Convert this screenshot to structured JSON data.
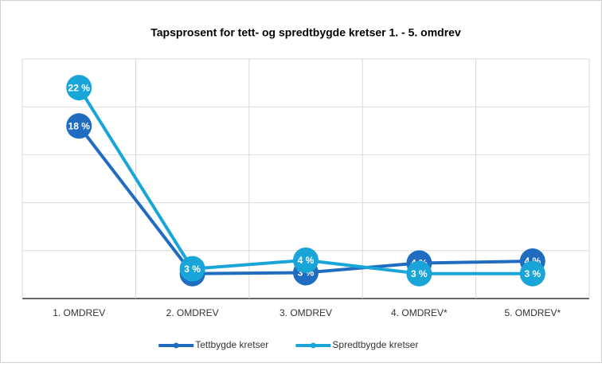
{
  "chart_data": {
    "type": "line",
    "title": "Tapsprosent for tett- og spredtbygde kretser 1. - 5. omdrev",
    "categories": [
      "1. OMDREV",
      "2. OMDREV",
      "3. OMDREV",
      "4. OMDREV*",
      "5. OMDREV*"
    ],
    "series": [
      {
        "name": "Tettbygde kretser",
        "color": "#1f6cc0",
        "values": [
          18,
          2.6,
          2.7,
          3.7,
          3.9
        ],
        "value_labels": [
          "18 %",
          "3 %",
          "3 %",
          "4 %",
          "4 %"
        ]
      },
      {
        "name": "Spredtbygde kretser",
        "color": "#1aa5d8",
        "values": [
          22,
          3.1,
          4.0,
          2.6,
          2.6
        ],
        "value_labels": [
          "22 %",
          "3 %",
          "4 %",
          "3 %",
          "3 %"
        ]
      }
    ],
    "ylim": [
      0,
      25
    ],
    "yticks": [
      0,
      5,
      10,
      15,
      20,
      25
    ],
    "grid": true,
    "legend": "bottom"
  }
}
